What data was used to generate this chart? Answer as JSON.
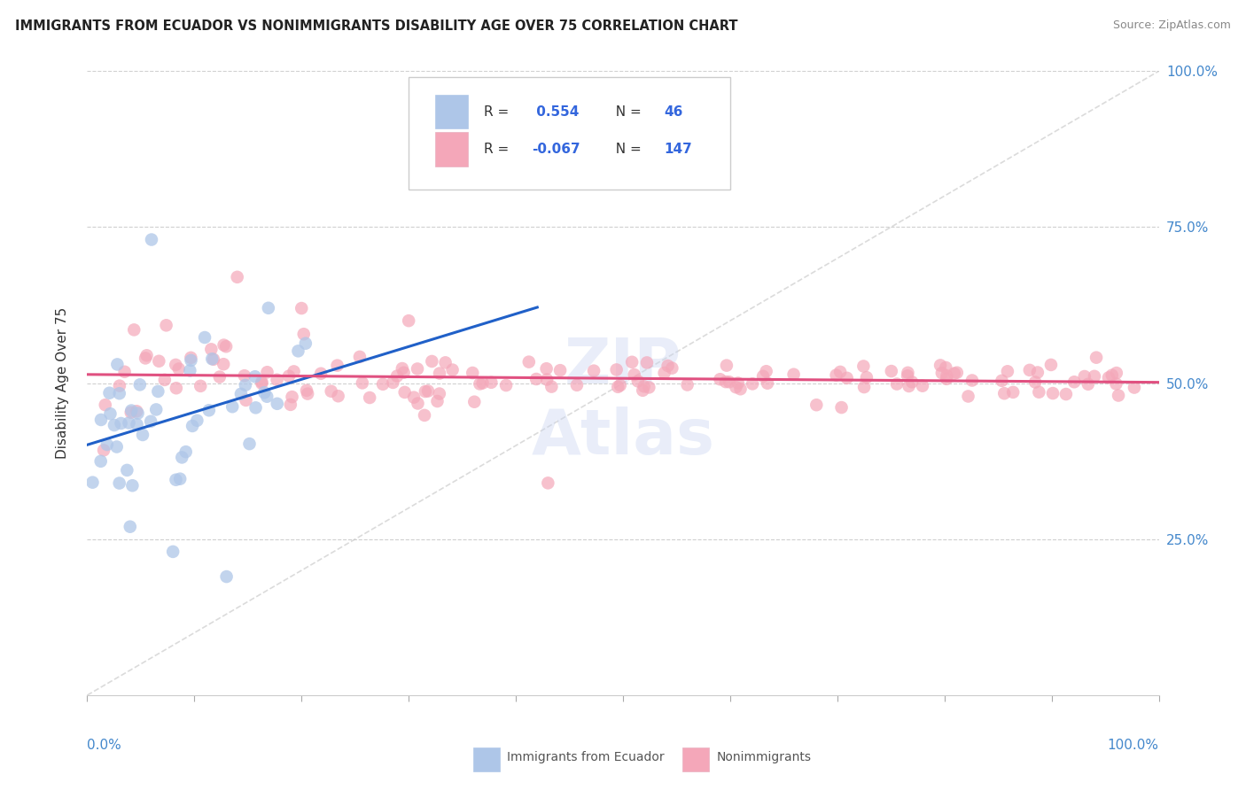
{
  "title": "IMMIGRANTS FROM ECUADOR VS NONIMMIGRANTS DISABILITY AGE OVER 75 CORRELATION CHART",
  "source": "Source: ZipAtlas.com",
  "ylabel": "Disability Age Over 75",
  "r_immigrants": 0.554,
  "n_immigrants": 46,
  "r_nonimmigrants": -0.067,
  "n_nonimmigrants": 147,
  "legend_label1": "Immigrants from Ecuador",
  "legend_label2": "Nonimmigrants",
  "xlim": [
    0.0,
    1.0
  ],
  "ylim": [
    0.0,
    1.0
  ],
  "color_immigrants": "#aec6e8",
  "color_nonimmigrants": "#f4a7b9",
  "line_color_immigrants": "#2060c8",
  "line_color_nonimmigrants": "#e05080",
  "line_color_diagonal": "#c8c8c8",
  "background_color": "#ffffff",
  "grid_color": "#d0d0d0",
  "title_color": "#222222",
  "source_color": "#888888",
  "axis_label_color": "#4488cc",
  "text_color": "#333333"
}
